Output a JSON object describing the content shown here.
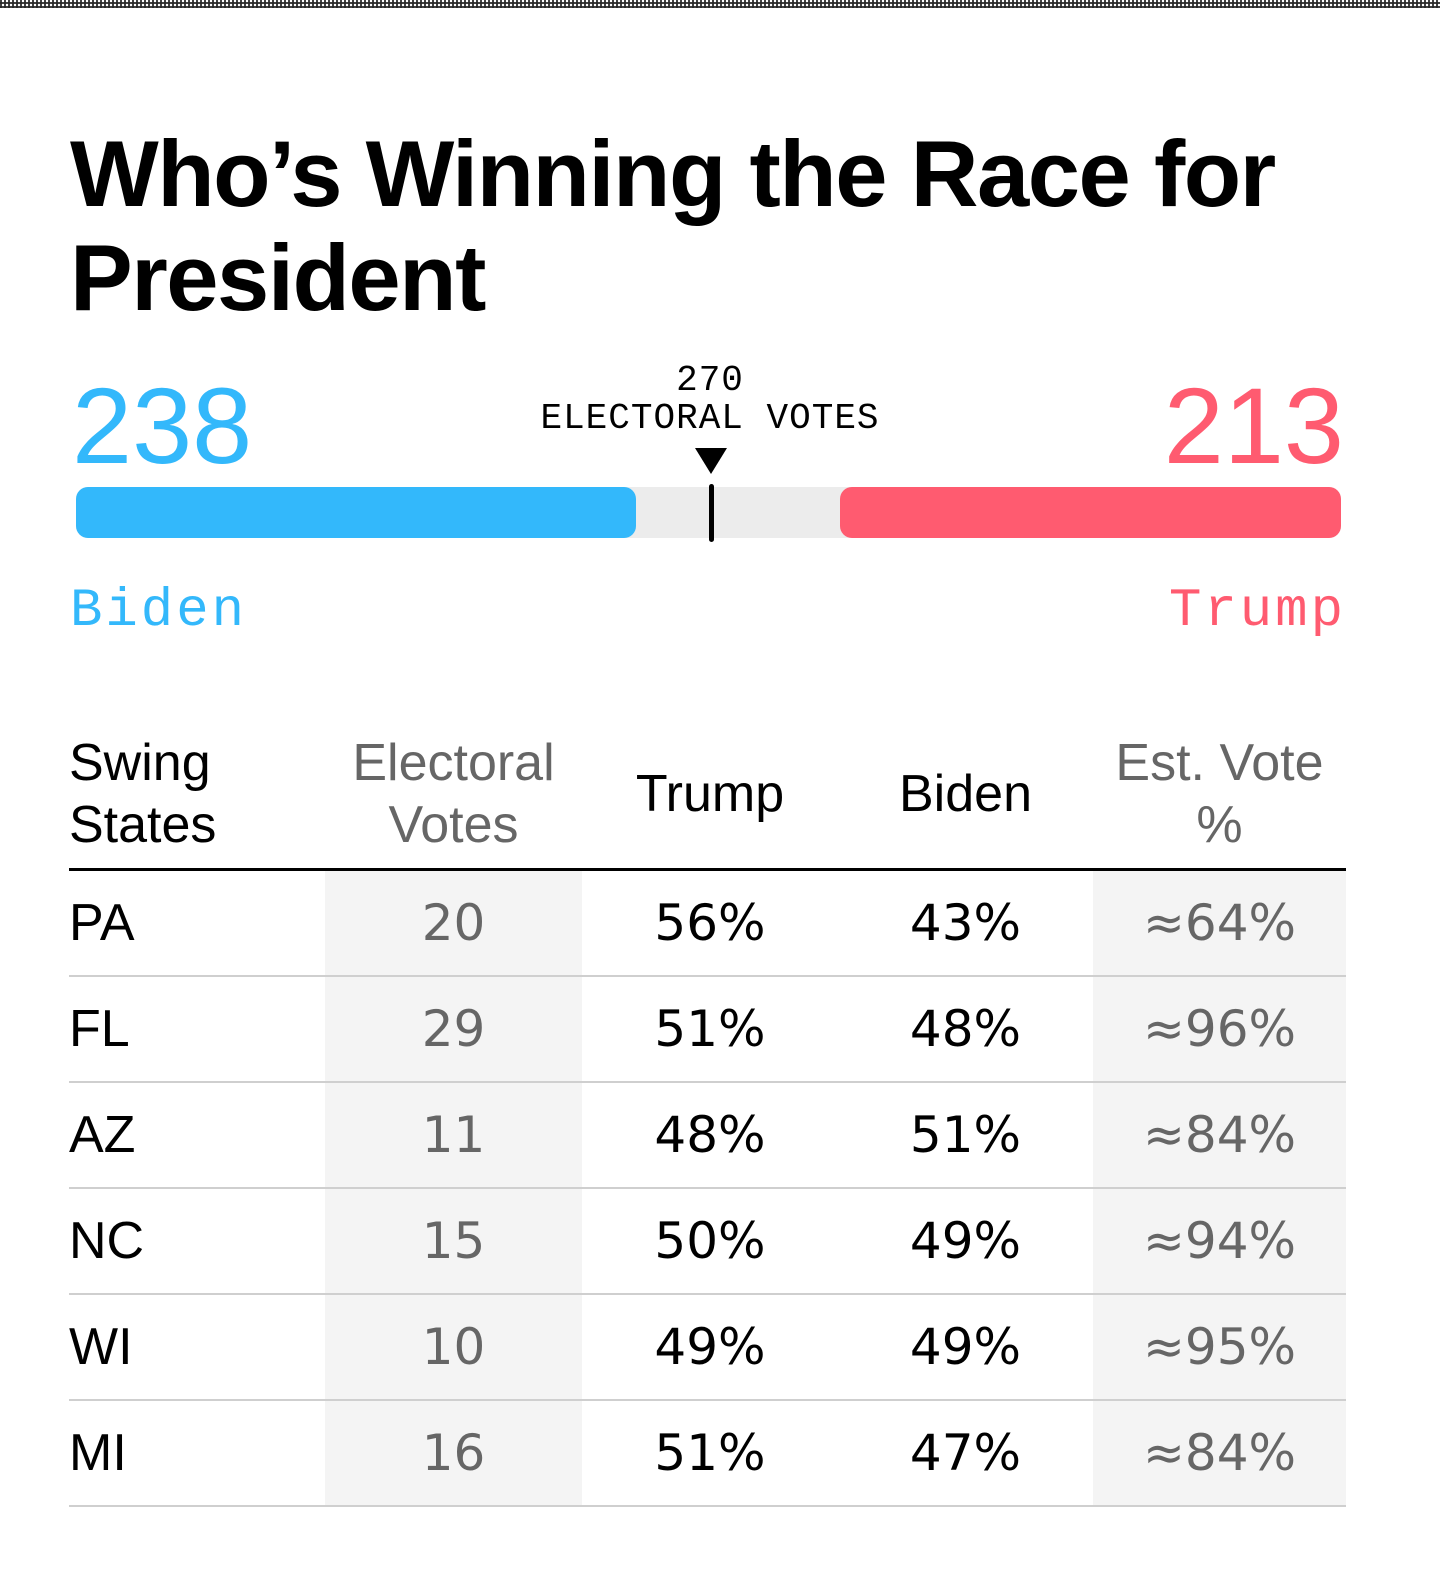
{
  "title": "Who’s Winning the Race for President",
  "tally": {
    "biden_votes": "238",
    "trump_votes": "213",
    "threshold_value": "270",
    "threshold_label": "ELECTORAL VOTES",
    "biden_name": "Biden",
    "trump_name": "Trump"
  },
  "colors": {
    "biden": "#33b8fb",
    "trump": "#ff5b70",
    "track": "#ececec"
  },
  "table": {
    "headers": {
      "state": "Swing States",
      "electoral": "Electoral Votes",
      "trump": "Trump",
      "biden": "Biden",
      "est": "Est. Vote %"
    },
    "rows": [
      {
        "state": "PA",
        "ev": "20",
        "trump": "56%",
        "biden": "43%",
        "est": "≈64%"
      },
      {
        "state": "FL",
        "ev": "29",
        "trump": "51%",
        "biden": "48%",
        "est": "≈96%"
      },
      {
        "state": "AZ",
        "ev": "11",
        "trump": "48%",
        "biden": "51%",
        "est": "≈84%"
      },
      {
        "state": "NC",
        "ev": "15",
        "trump": "50%",
        "biden": "49%",
        "est": "≈94%"
      },
      {
        "state": "WI",
        "ev": "10",
        "trump": "49%",
        "biden": "49%",
        "est": "≈95%"
      },
      {
        "state": "MI",
        "ev": "16",
        "trump": "51%",
        "biden": "47%",
        "est": "≈84%"
      }
    ]
  },
  "chart_data": {
    "type": "bar",
    "total": 538,
    "threshold": 270,
    "series": [
      {
        "name": "Biden",
        "values": [
          238
        ]
      },
      {
        "name": "Trump",
        "values": [
          213
        ]
      }
    ]
  }
}
